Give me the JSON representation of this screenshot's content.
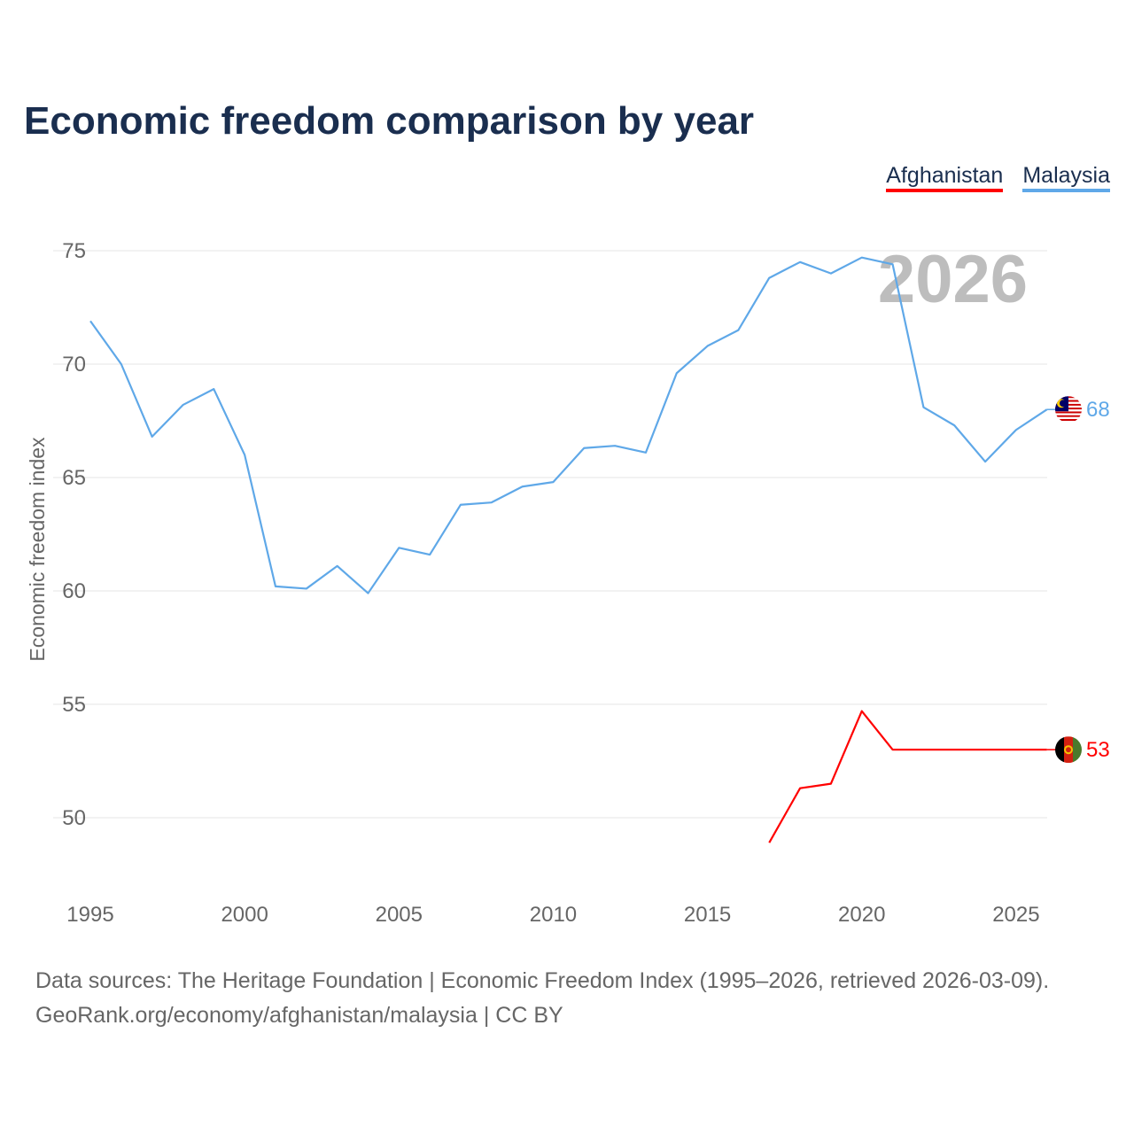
{
  "title": "Economic freedom comparison by year",
  "legend": [
    {
      "label": "Afghanistan",
      "color": "#ff0000"
    },
    {
      "label": "Malaysia",
      "color": "#5fa8e8"
    }
  ],
  "year_watermark": "2026",
  "source_line1": "Data sources: The Heritage Foundation | Economic Freedom Index (1995–2026, retrieved 2026-03-09).",
  "source_line2": "GeoRank.org/economy/afghanistan/malaysia | CC BY",
  "chart_data": {
    "type": "line",
    "title": "Economic freedom comparison by year",
    "xlabel": "",
    "ylabel": "Economic freedom index",
    "xlim": [
      1995,
      2026
    ],
    "ylim": [
      47,
      77
    ],
    "xticks": [
      1995,
      2000,
      2005,
      2010,
      2015,
      2020,
      2025
    ],
    "yticks": [
      50,
      55,
      60,
      65,
      70,
      75
    ],
    "grid": true,
    "legend_position": "top-right",
    "series": [
      {
        "name": "Malaysia",
        "color": "#5fa8e8",
        "end_label": "68",
        "flag": "malaysia-flag",
        "x": [
          1995,
          1996,
          1997,
          1998,
          1999,
          2000,
          2001,
          2002,
          2003,
          2004,
          2005,
          2006,
          2007,
          2008,
          2009,
          2010,
          2011,
          2012,
          2013,
          2014,
          2015,
          2016,
          2017,
          2018,
          2019,
          2020,
          2021,
          2022,
          2023,
          2024,
          2025,
          2026
        ],
        "y": [
          71.9,
          70.0,
          66.8,
          68.2,
          68.9,
          66.0,
          60.2,
          60.1,
          61.1,
          59.9,
          61.9,
          61.6,
          63.8,
          63.9,
          64.6,
          64.8,
          66.3,
          66.4,
          66.1,
          69.6,
          70.8,
          71.5,
          73.8,
          74.5,
          74.0,
          74.7,
          74.4,
          68.1,
          67.3,
          65.7,
          67.1,
          68.0
        ]
      },
      {
        "name": "Afghanistan",
        "color": "#ff0000",
        "end_label": "53",
        "flag": "afghanistan-flag",
        "x": [
          2017,
          2018,
          2019,
          2020,
          2021,
          2026
        ],
        "y": [
          48.9,
          51.3,
          51.5,
          54.7,
          53.0,
          53.0
        ]
      }
    ]
  }
}
